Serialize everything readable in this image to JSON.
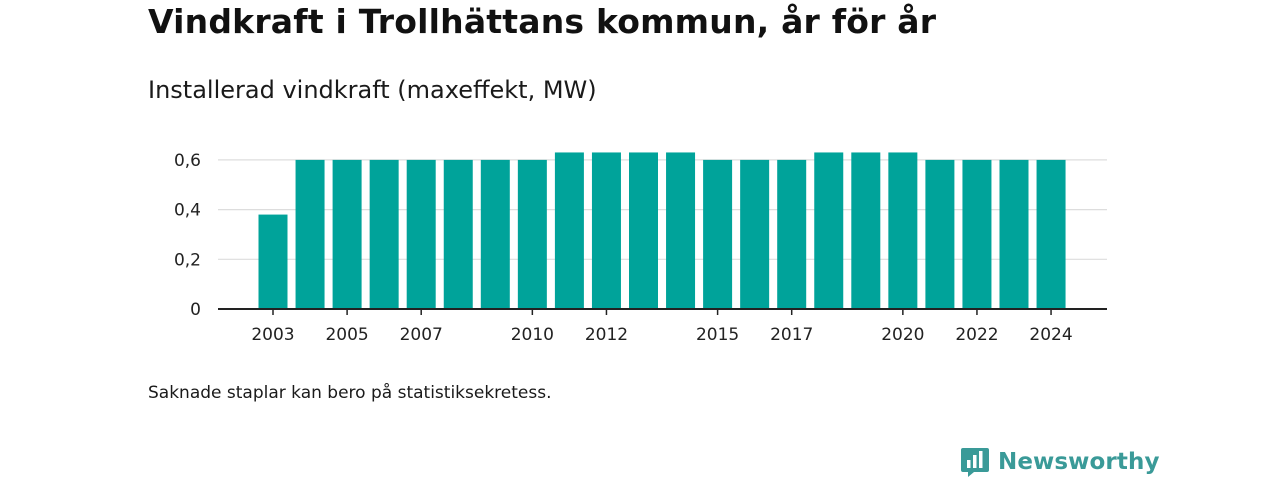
{
  "title": "Vindkraft i Trollhättans kommun, år för år",
  "subtitle": "Installerad vindkraft (maxeffekt, MW)",
  "footnote": "Saknade staplar kan bero på statistiksekretess.",
  "brand": {
    "name": "Newsworthy",
    "icon": "newsworthy-logo-icon",
    "color": "#3a9a98"
  },
  "chart_data": {
    "type": "bar",
    "categories": [
      "2003",
      "2004",
      "2005",
      "2006",
      "2007",
      "2008",
      "2009",
      "2010",
      "2011",
      "2012",
      "2013",
      "2014",
      "2015",
      "2016",
      "2017",
      "2018",
      "2019",
      "2020",
      "2021",
      "2022",
      "2023",
      "2024"
    ],
    "values": [
      0.38,
      0.6,
      0.6,
      0.6,
      0.6,
      0.6,
      0.6,
      0.6,
      0.63,
      0.63,
      0.63,
      0.63,
      0.6,
      0.6,
      0.6,
      0.63,
      0.63,
      0.63,
      0.6,
      0.6,
      0.6,
      0.6
    ],
    "x_tick_labels": [
      "2003",
      "2005",
      "2007",
      "2010",
      "2012",
      "2015",
      "2017",
      "2020",
      "2022",
      "2024"
    ],
    "y_ticks": [
      0,
      0.2,
      0.4,
      0.6
    ],
    "y_tick_labels": [
      "0",
      "0,2",
      "0,4",
      "0,6"
    ],
    "ylim": [
      0,
      0.66
    ],
    "xlabel": "",
    "ylabel": "",
    "grid": true,
    "bar_color": "#00a39a",
    "grid_color": "#dddddd",
    "axis_color": "#222222"
  }
}
